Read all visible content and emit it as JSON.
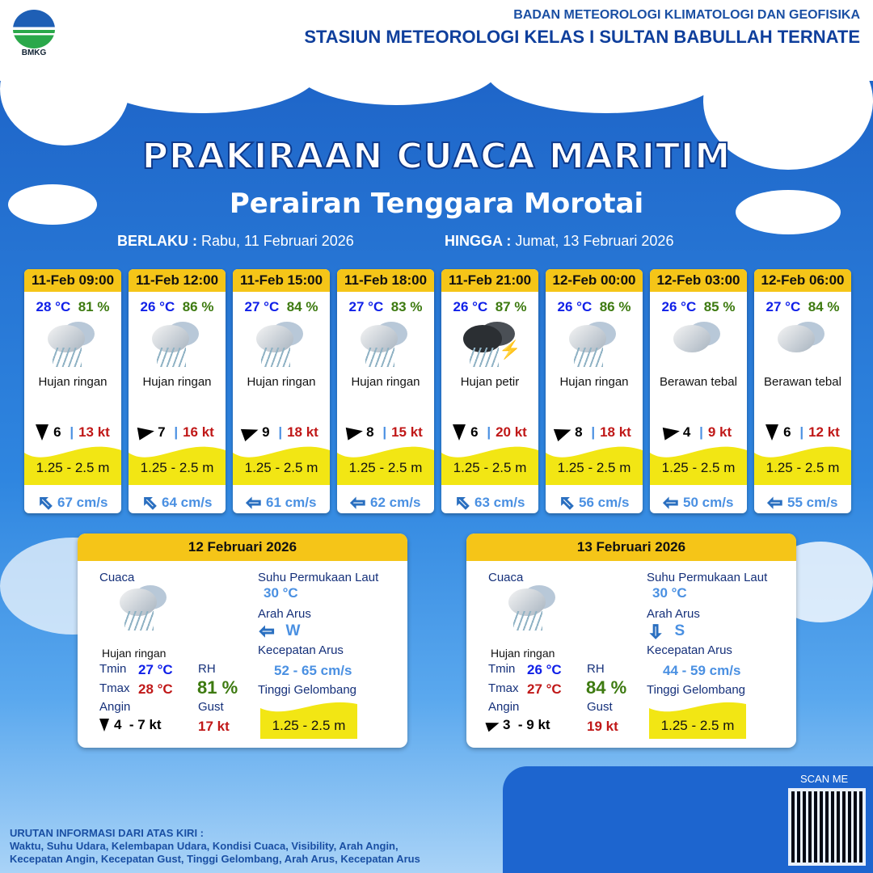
{
  "header": {
    "logo_text": "BMKG",
    "org": "BADAN METEOROLOGI KLIMATOLOGI DAN GEOFISIKA",
    "station": "STASIUN METEOROLOGI KELAS I SULTAN BABULLAH TERNATE"
  },
  "title": "PRAKIRAAN CUACA MARITIM",
  "subtitle": "Perairan Tenggara Morotai",
  "validity": {
    "from_label": "BERLAKU :",
    "from": "Rabu, 11 Februari 2026",
    "to_label": "HINGGA :",
    "to": "Jumat, 13 Februari 2026"
  },
  "colors": {
    "header_yellow": "#f5c518",
    "temp": "#1020e8",
    "rh": "#3d7a10",
    "gust": "#c01818",
    "current": "#4a90e2",
    "wave": "#f2e614"
  },
  "forecasts": [
    {
      "time": "11-Feb 09:00",
      "temp": "28 °C",
      "rh": "81 %",
      "icon": "rain-cloud-icon",
      "cond": "Hujan ringan",
      "wind_dir_deg": 0,
      "wind": "6",
      "gust": "13 kt",
      "wave": "1.25 - 2.5 m",
      "current_dir": "NW",
      "current": "67 cm/s"
    },
    {
      "time": "11-Feb 12:00",
      "temp": "26 °C",
      "rh": "86 %",
      "icon": "rain-cloud-icon",
      "cond": "Hujan ringan",
      "wind_dir_deg": -100,
      "wind": "7",
      "gust": "16 kt",
      "wave": "1.25 - 2.5 m",
      "current_dir": "NW",
      "current": "64 cm/s"
    },
    {
      "time": "11-Feb 15:00",
      "temp": "27 °C",
      "rh": "84 %",
      "icon": "rain-cloud-icon",
      "cond": "Hujan ringan",
      "wind_dir_deg": -110,
      "wind": "9",
      "gust": "18 kt",
      "wave": "1.25 - 2.5 m",
      "current_dir": "W",
      "current": "61 cm/s"
    },
    {
      "time": "11-Feb 18:00",
      "temp": "27 °C",
      "rh": "83 %",
      "icon": "rain-cloud-icon",
      "cond": "Hujan ringan",
      "wind_dir_deg": -100,
      "wind": "8",
      "gust": "15 kt",
      "wave": "1.25 - 2.5 m",
      "current_dir": "W",
      "current": "62 cm/s"
    },
    {
      "time": "11-Feb 21:00",
      "temp": "26 °C",
      "rh": "87 %",
      "icon": "thunderstorm-icon",
      "cond": "Hujan petir",
      "wind_dir_deg": 0,
      "wind": "6",
      "gust": "20 kt",
      "wave": "1.25 - 2.5 m",
      "current_dir": "NW",
      "current": "63 cm/s"
    },
    {
      "time": "12-Feb 00:00",
      "temp": "26 °C",
      "rh": "86 %",
      "icon": "rain-cloud-icon",
      "cond": "Hujan ringan",
      "wind_dir_deg": -110,
      "wind": "8",
      "gust": "18 kt",
      "wave": "1.25 - 2.5 m",
      "current_dir": "NW",
      "current": "56 cm/s"
    },
    {
      "time": "12-Feb 03:00",
      "temp": "26 °C",
      "rh": "85 %",
      "icon": "cloud-icon",
      "cond": "Berawan tebal",
      "wind_dir_deg": -100,
      "wind": "4",
      "gust": "9 kt",
      "wave": "1.25 - 2.5 m",
      "current_dir": "W",
      "current": "50 cm/s"
    },
    {
      "time": "12-Feb 06:00",
      "temp": "27 °C",
      "rh": "84 %",
      "icon": "cloud-icon",
      "cond": "Berawan tebal",
      "wind_dir_deg": 0,
      "wind": "6",
      "gust": "12 kt",
      "wave": "1.25 - 2.5 m",
      "current_dir": "W",
      "current": "55 cm/s"
    }
  ],
  "summaries": [
    {
      "date": "12 Februari 2026",
      "cuaca_label": "Cuaca",
      "cond": "Hujan ringan",
      "tmin_label": "Tmin",
      "tmin": "27 °C",
      "tmax_label": "Tmax",
      "tmax": "28 °C",
      "rh_label": "RH",
      "rh": "81 %",
      "angin_label": "Angin",
      "wind_dir_deg": 0,
      "angin": "4  - 7 kt",
      "gust_label": "Gust",
      "gust": "17 kt",
      "sst_label": "Suhu Permukaan Laut",
      "sst": "30 °C",
      "arus_label": "Arah Arus",
      "arus_dir": "W",
      "speed_label": "Kecepatan Arus",
      "speed": "52 - 65 cm/s",
      "wave_label": "Tinggi Gelombang",
      "wave": "1.25 - 2.5 m"
    },
    {
      "date": "13 Februari 2026",
      "cuaca_label": "Cuaca",
      "cond": "Hujan ringan",
      "tmin_label": "Tmin",
      "tmin": "26 °C",
      "tmax_label": "Tmax",
      "tmax": "27 °C",
      "rh_label": "RH",
      "rh": "84 %",
      "angin_label": "Angin",
      "wind_dir_deg": -110,
      "angin": "3  - 9 kt",
      "gust_label": "Gust",
      "gust": "19 kt",
      "sst_label": "Suhu Permukaan Laut",
      "sst": "30 °C",
      "arus_label": "Arah Arus",
      "arus_dir": "S",
      "speed_label": "Kecepatan Arus",
      "speed": "44 - 59 cm/s",
      "wave_label": "Tinggi Gelombang",
      "wave": "1.25 - 2.5 m"
    }
  ],
  "footer": {
    "scan": "SCAN ME",
    "legend_title": "URUTAN INFORMASI DARI ATAS KIRI :",
    "legend_line1": "Waktu, Suhu Udara, Kelembapan Udara, Kondisi Cuaca, Visibility, Arah Angin,",
    "legend_line2": "Kecepatan Angin, Kecepatan Gust, Tinggi Gelombang, Arah Arus, Kecepatan Arus"
  }
}
